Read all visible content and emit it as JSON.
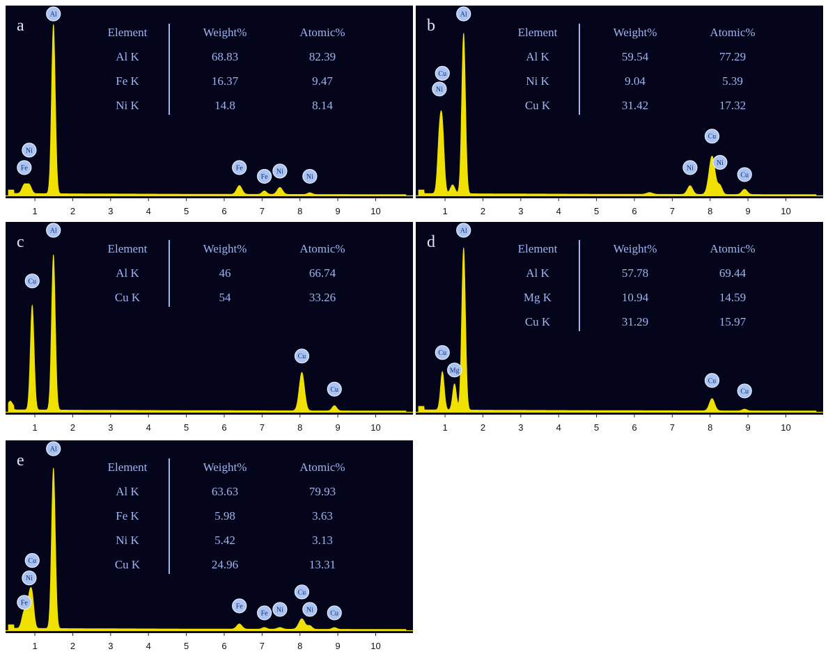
{
  "colors": {
    "background": "#04041a",
    "spectrum": "#f0e000",
    "table_text": "#9fb6ee",
    "label_text": "#dfe6ff",
    "marker_fill": "#a9c3f2",
    "axis_bar": "#ffffff"
  },
  "chart_data": [
    {
      "type": "line",
      "panel_label": "a",
      "xlim": [
        0.3,
        10.8
      ],
      "xticks": [
        "1",
        "2",
        "3",
        "4",
        "5",
        "6",
        "7",
        "8",
        "9",
        "10"
      ],
      "table": {
        "headers": [
          "Element",
          "Weight%",
          "Atomic%"
        ],
        "rows": [
          [
            "Al K",
            "68.83",
            "82.39"
          ],
          [
            "Fe K",
            "16.37",
            "9.47"
          ],
          [
            "Ni K",
            "14.8",
            "8.14"
          ]
        ]
      },
      "markers": [
        {
          "label": "Al",
          "x": 1.49,
          "level": 1.0
        },
        {
          "label": "Ni",
          "x": 0.85,
          "level": 0.22
        },
        {
          "label": "Fe",
          "x": 0.72,
          "level": 0.12
        },
        {
          "label": "Fe",
          "x": 6.4,
          "level": 0.12
        },
        {
          "label": "Fe",
          "x": 7.06,
          "level": 0.07
        },
        {
          "label": "Ni",
          "x": 7.47,
          "level": 0.1
        },
        {
          "label": "Ni",
          "x": 8.26,
          "level": 0.07
        }
      ],
      "peaks": [
        {
          "x": 0.72,
          "h": 0.05,
          "w": 0.06
        },
        {
          "x": 0.85,
          "h": 0.05,
          "w": 0.06
        },
        {
          "x": 1.49,
          "h": 0.97,
          "w": 0.05
        },
        {
          "x": 6.4,
          "h": 0.05,
          "w": 0.07
        },
        {
          "x": 7.06,
          "h": 0.02,
          "w": 0.06
        },
        {
          "x": 7.47,
          "h": 0.04,
          "w": 0.07
        },
        {
          "x": 8.26,
          "h": 0.01,
          "w": 0.06
        }
      ]
    },
    {
      "type": "line",
      "panel_label": "b",
      "xlim": [
        0.3,
        10.8
      ],
      "xticks": [
        "1",
        "2",
        "3",
        "4",
        "5",
        "6",
        "7",
        "8",
        "9",
        "10"
      ],
      "table": {
        "headers": [
          "Element",
          "Weight%",
          "Atomic%"
        ],
        "rows": [
          [
            "Al K",
            "59.54",
            "77.29"
          ],
          [
            "Ni K",
            "9.04",
            "5.39"
          ],
          [
            "Cu K",
            "31.42",
            "17.32"
          ]
        ]
      },
      "markers": [
        {
          "label": "Al",
          "x": 1.49,
          "level": 1.0
        },
        {
          "label": "Cu",
          "x": 0.93,
          "level": 0.66
        },
        {
          "label": "Ni",
          "x": 0.85,
          "level": 0.57
        },
        {
          "label": "Ni",
          "x": 7.47,
          "level": 0.12
        },
        {
          "label": "Cu",
          "x": 8.05,
          "level": 0.3
        },
        {
          "label": "Ni",
          "x": 8.26,
          "level": 0.15
        },
        {
          "label": "Cu",
          "x": 8.91,
          "level": 0.08
        }
      ],
      "peaks": [
        {
          "x": 0.85,
          "h": 0.3,
          "w": 0.05
        },
        {
          "x": 0.93,
          "h": 0.35,
          "w": 0.05
        },
        {
          "x": 1.2,
          "h": 0.05,
          "w": 0.06
        },
        {
          "x": 1.49,
          "h": 0.92,
          "w": 0.05
        },
        {
          "x": 6.4,
          "h": 0.01,
          "w": 0.08
        },
        {
          "x": 7.47,
          "h": 0.05,
          "w": 0.07
        },
        {
          "x": 8.05,
          "h": 0.22,
          "w": 0.08
        },
        {
          "x": 8.26,
          "h": 0.05,
          "w": 0.06
        },
        {
          "x": 8.91,
          "h": 0.03,
          "w": 0.07
        }
      ]
    },
    {
      "type": "line",
      "panel_label": "c",
      "xlim": [
        0.3,
        10.8
      ],
      "xticks": [
        "1",
        "2",
        "3",
        "4",
        "5",
        "6",
        "7",
        "8",
        "9",
        "10"
      ],
      "table": {
        "headers": [
          "Element",
          "Weight%",
          "Atomic%"
        ],
        "rows": [
          [
            "Al K",
            "46",
            "66.74"
          ],
          [
            "Cu K",
            "54",
            "33.26"
          ]
        ]
      },
      "markers": [
        {
          "label": "Al",
          "x": 1.49,
          "level": 1.0
        },
        {
          "label": "Cu",
          "x": 0.93,
          "level": 0.71
        },
        {
          "label": "Cu",
          "x": 8.05,
          "level": 0.28
        },
        {
          "label": "Cu",
          "x": 8.91,
          "level": 0.09
        }
      ],
      "peaks": [
        {
          "x": 0.35,
          "h": 0.03,
          "w": 0.05
        },
        {
          "x": 0.93,
          "h": 0.6,
          "w": 0.05
        },
        {
          "x": 1.49,
          "h": 0.89,
          "w": 0.05
        },
        {
          "x": 8.05,
          "h": 0.22,
          "w": 0.07
        },
        {
          "x": 8.91,
          "h": 0.03,
          "w": 0.06
        }
      ]
    },
    {
      "type": "line",
      "panel_label": "d",
      "xlim": [
        0.3,
        10.8
      ],
      "xticks": [
        "1",
        "2",
        "3",
        "4",
        "5",
        "6",
        "7",
        "8",
        "9",
        "10"
      ],
      "table": {
        "headers": [
          "Element",
          "Weight%",
          "Atomic%"
        ],
        "rows": [
          [
            "Al K",
            "57.78",
            "69.44"
          ],
          [
            "Mg K",
            "10.94",
            "14.59"
          ],
          [
            "Cu K",
            "31.29",
            "15.97"
          ]
        ]
      },
      "markers": [
        {
          "label": "Al",
          "x": 1.49,
          "level": 1.0
        },
        {
          "label": "Cu",
          "x": 0.93,
          "level": 0.3
        },
        {
          "label": "Mg",
          "x": 1.25,
          "level": 0.2
        },
        {
          "label": "Cu",
          "x": 8.05,
          "level": 0.14
        },
        {
          "label": "Cu",
          "x": 8.91,
          "level": 0.08
        }
      ],
      "peaks": [
        {
          "x": 0.93,
          "h": 0.22,
          "w": 0.05
        },
        {
          "x": 1.25,
          "h": 0.15,
          "w": 0.05
        },
        {
          "x": 1.49,
          "h": 0.93,
          "w": 0.05
        },
        {
          "x": 8.05,
          "h": 0.07,
          "w": 0.07
        },
        {
          "x": 8.91,
          "h": 0.01,
          "w": 0.06
        }
      ]
    },
    {
      "type": "line",
      "panel_label": "e",
      "xlim": [
        0.3,
        10.8
      ],
      "xticks": [
        "1",
        "2",
        "3",
        "4",
        "5",
        "6",
        "7",
        "8",
        "9",
        "10"
      ],
      "table": {
        "headers": [
          "Element",
          "Weight%",
          "Atomic%"
        ],
        "rows": [
          [
            "Al K",
            "63.63",
            "79.93"
          ],
          [
            "Fe K",
            "5.98",
            "3.63"
          ],
          [
            "Ni K",
            "5.42",
            "3.13"
          ],
          [
            "Cu K",
            "24.96",
            "13.31"
          ]
        ]
      },
      "markers": [
        {
          "label": "Al",
          "x": 1.49,
          "level": 1.0
        },
        {
          "label": "Cu",
          "x": 0.93,
          "level": 0.36
        },
        {
          "label": "Ni",
          "x": 0.85,
          "level": 0.26
        },
        {
          "label": "Fe",
          "x": 0.72,
          "level": 0.12
        },
        {
          "label": "Fe",
          "x": 6.4,
          "level": 0.1
        },
        {
          "label": "Fe",
          "x": 7.06,
          "level": 0.06
        },
        {
          "label": "Ni",
          "x": 7.47,
          "level": 0.08
        },
        {
          "label": "Cu",
          "x": 8.05,
          "level": 0.18
        },
        {
          "label": "Ni",
          "x": 8.26,
          "level": 0.08
        },
        {
          "label": "Cu",
          "x": 8.91,
          "level": 0.06
        }
      ],
      "peaks": [
        {
          "x": 0.72,
          "h": 0.1,
          "w": 0.06
        },
        {
          "x": 0.85,
          "h": 0.15,
          "w": 0.05
        },
        {
          "x": 0.93,
          "h": 0.17,
          "w": 0.05
        },
        {
          "x": 1.49,
          "h": 0.92,
          "w": 0.05
        },
        {
          "x": 6.4,
          "h": 0.03,
          "w": 0.07
        },
        {
          "x": 7.06,
          "h": 0.01,
          "w": 0.06
        },
        {
          "x": 7.47,
          "h": 0.01,
          "w": 0.07
        },
        {
          "x": 8.05,
          "h": 0.06,
          "w": 0.08
        },
        {
          "x": 8.26,
          "h": 0.02,
          "w": 0.06
        },
        {
          "x": 8.91,
          "h": 0.01,
          "w": 0.06
        }
      ]
    }
  ]
}
